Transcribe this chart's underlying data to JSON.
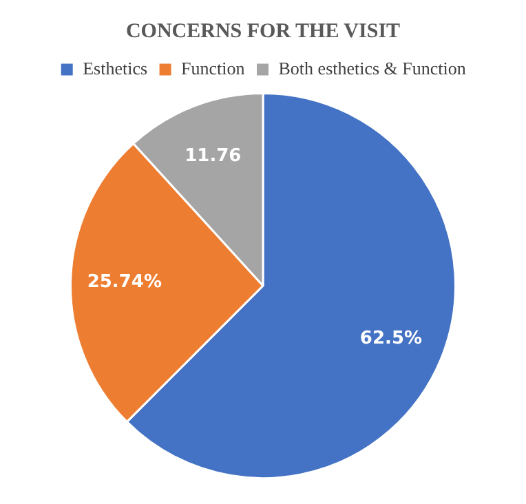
{
  "chart_data": {
    "type": "pie",
    "title": "CONCERNS FOR THE VISIT",
    "categories": [
      "Esthetics",
      "Function",
      "Both esthetics & Function"
    ],
    "values": [
      62.5,
      25.74,
      11.76
    ],
    "colors": [
      "#4472c4",
      "#ed7d31",
      "#a5a5a5"
    ],
    "value_labels": [
      "62.5%",
      "25.74%",
      "11.76"
    ],
    "legend": "top"
  }
}
